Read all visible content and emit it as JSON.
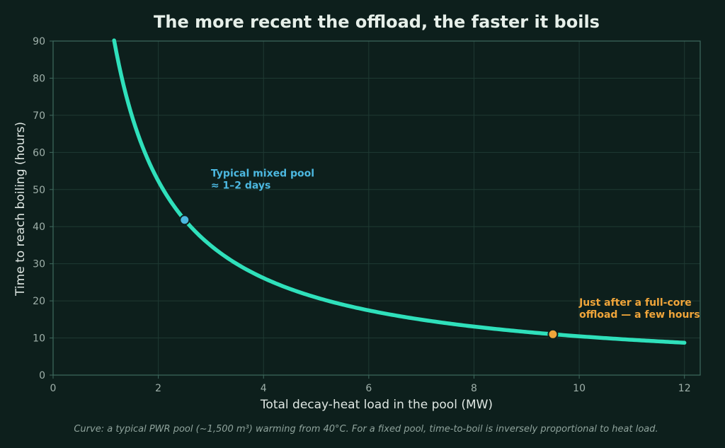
{
  "chart_data": {
    "type": "line",
    "title": "The more recent the offload, the faster it boils",
    "xlabel": "Total decay-heat load in the pool  (MW)",
    "ylabel": "Time to reach boiling  (hours)",
    "caption": "Curve: a typical PWR pool (~1,500 m³) warming from 40°C. For a fixed pool, time-to-boil is inversely proportional to heat load.",
    "xlim": [
      0,
      12.3
    ],
    "ylim": [
      0,
      90
    ],
    "xticks": [
      0,
      2,
      4,
      6,
      8,
      10,
      12
    ],
    "yticks": [
      0,
      10,
      20,
      30,
      40,
      50,
      60,
      70,
      80,
      90
    ],
    "grid": true,
    "series": [
      {
        "relation": "y = k / x",
        "k": 104.6,
        "x_range": [
          1.16,
          12
        ],
        "color": "#2fe0bb"
      }
    ],
    "points": [
      {
        "x": 2.5,
        "y": 41.8,
        "color": "#4cb8e0"
      },
      {
        "x": 9.5,
        "y": 11.0,
        "color": "#f0a53a"
      }
    ],
    "annotations": [
      {
        "lines": [
          "Typical mixed pool",
          "≈ 1–2 days"
        ],
        "x": 3.0,
        "y": 50.2,
        "color": "#4cb8e0"
      },
      {
        "lines": [
          "Just after a full-core",
          "offload — a few hours"
        ],
        "x": 10.0,
        "y": 15.4,
        "color": "#f0a53a"
      }
    ]
  },
  "colors": {
    "background": "#0d1f1c",
    "grid": "#1f3a33",
    "spine": "#3f6a5e"
  }
}
